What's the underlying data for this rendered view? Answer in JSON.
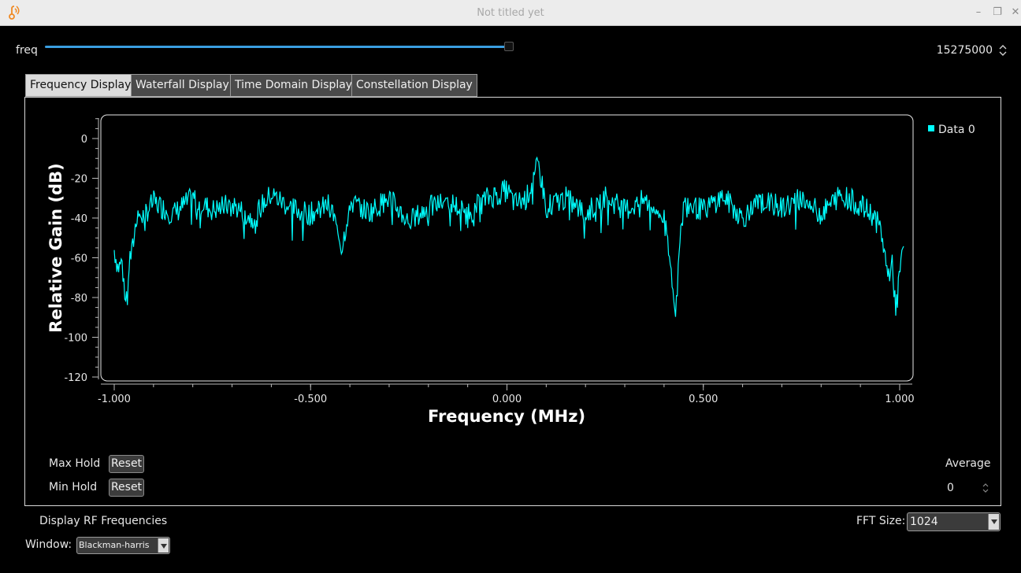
{
  "window": {
    "title": "Not titled yet",
    "icons": [
      "gnuradio-logo-icon",
      "minimize-icon",
      "restore-icon",
      "close-icon"
    ]
  },
  "freq_control": {
    "label": "freq",
    "value": "15275000",
    "slider_fraction": 1.0
  },
  "tabs": [
    {
      "label": "Frequency Display",
      "active": true
    },
    {
      "label": "Waterfall Display",
      "active": false
    },
    {
      "label": "Time Domain Display",
      "active": false
    },
    {
      "label": "Constellation Display",
      "active": false
    }
  ],
  "controls": {
    "max_hold_label": "Max Hold",
    "min_hold_label": "Min Hold",
    "reset_label": "Reset",
    "average_label": "Average",
    "average_value": "0",
    "display_rf_label": "Display RF Frequencies",
    "fft_size_label": "FFT Size:",
    "fft_size_value": "1024",
    "window_label": "Window:",
    "window_value": "Blackman-harris"
  },
  "colors": {
    "trace": "#00ffff",
    "slider": "#3a9ee0",
    "background": "#000000"
  },
  "chart_data": {
    "type": "line",
    "xlabel": "Frequency (MHz)",
    "ylabel": "Relative Gain (dB)",
    "xlim": [
      -1.03,
      1.03
    ],
    "ylim": [
      -120,
      10
    ],
    "xticks": [
      "-1.000",
      "-0.500",
      "0.000",
      "0.500",
      "1.000"
    ],
    "xtick_values": [
      -1,
      -0.5,
      0,
      0.5,
      1
    ],
    "yticks": [
      "0",
      "-20",
      "-40",
      "-60",
      "-80",
      "-100",
      "-120"
    ],
    "ytick_values": [
      0,
      -20,
      -40,
      -60,
      -80,
      -100,
      -120
    ],
    "legend": [
      {
        "name": "Data 0",
        "color": "#00ffff"
      }
    ],
    "legend_position": "right",
    "series": [
      {
        "name": "Data 0",
        "x": [
          -1.0,
          -0.99,
          -0.98,
          -0.975,
          -0.97,
          -0.965,
          -0.96,
          -0.955,
          -0.95,
          -0.94,
          -0.93,
          -0.9,
          -0.85,
          -0.8,
          -0.75,
          -0.7,
          -0.65,
          -0.6,
          -0.55,
          -0.5,
          -0.45,
          -0.42,
          -0.4,
          -0.35,
          -0.3,
          -0.25,
          -0.2,
          -0.15,
          -0.1,
          -0.05,
          0.0,
          0.02,
          0.05,
          0.08,
          0.1,
          0.15,
          0.2,
          0.25,
          0.3,
          0.35,
          0.4,
          0.43,
          0.44,
          0.45,
          0.5,
          0.55,
          0.6,
          0.65,
          0.7,
          0.75,
          0.8,
          0.85,
          0.9,
          0.93,
          0.95,
          0.96,
          0.97,
          0.98,
          0.99,
          1.0,
          1.01
        ],
        "y": [
          -56,
          -65,
          -62,
          -75,
          -82,
          -70,
          -60,
          -58,
          -50,
          -35,
          -40,
          -32,
          -38,
          -30,
          -36,
          -33,
          -40,
          -28,
          -35,
          -38,
          -33,
          -55,
          -32,
          -37,
          -30,
          -42,
          -35,
          -31,
          -38,
          -30,
          -26,
          -33,
          -30,
          -13,
          -34,
          -30,
          -38,
          -29,
          -36,
          -31,
          -40,
          -85,
          -55,
          -33,
          -36,
          -29,
          -40,
          -31,
          -35,
          -30,
          -38,
          -28,
          -34,
          -38,
          -45,
          -55,
          -70,
          -62,
          -85,
          -65,
          -55
        ]
      }
    ]
  }
}
